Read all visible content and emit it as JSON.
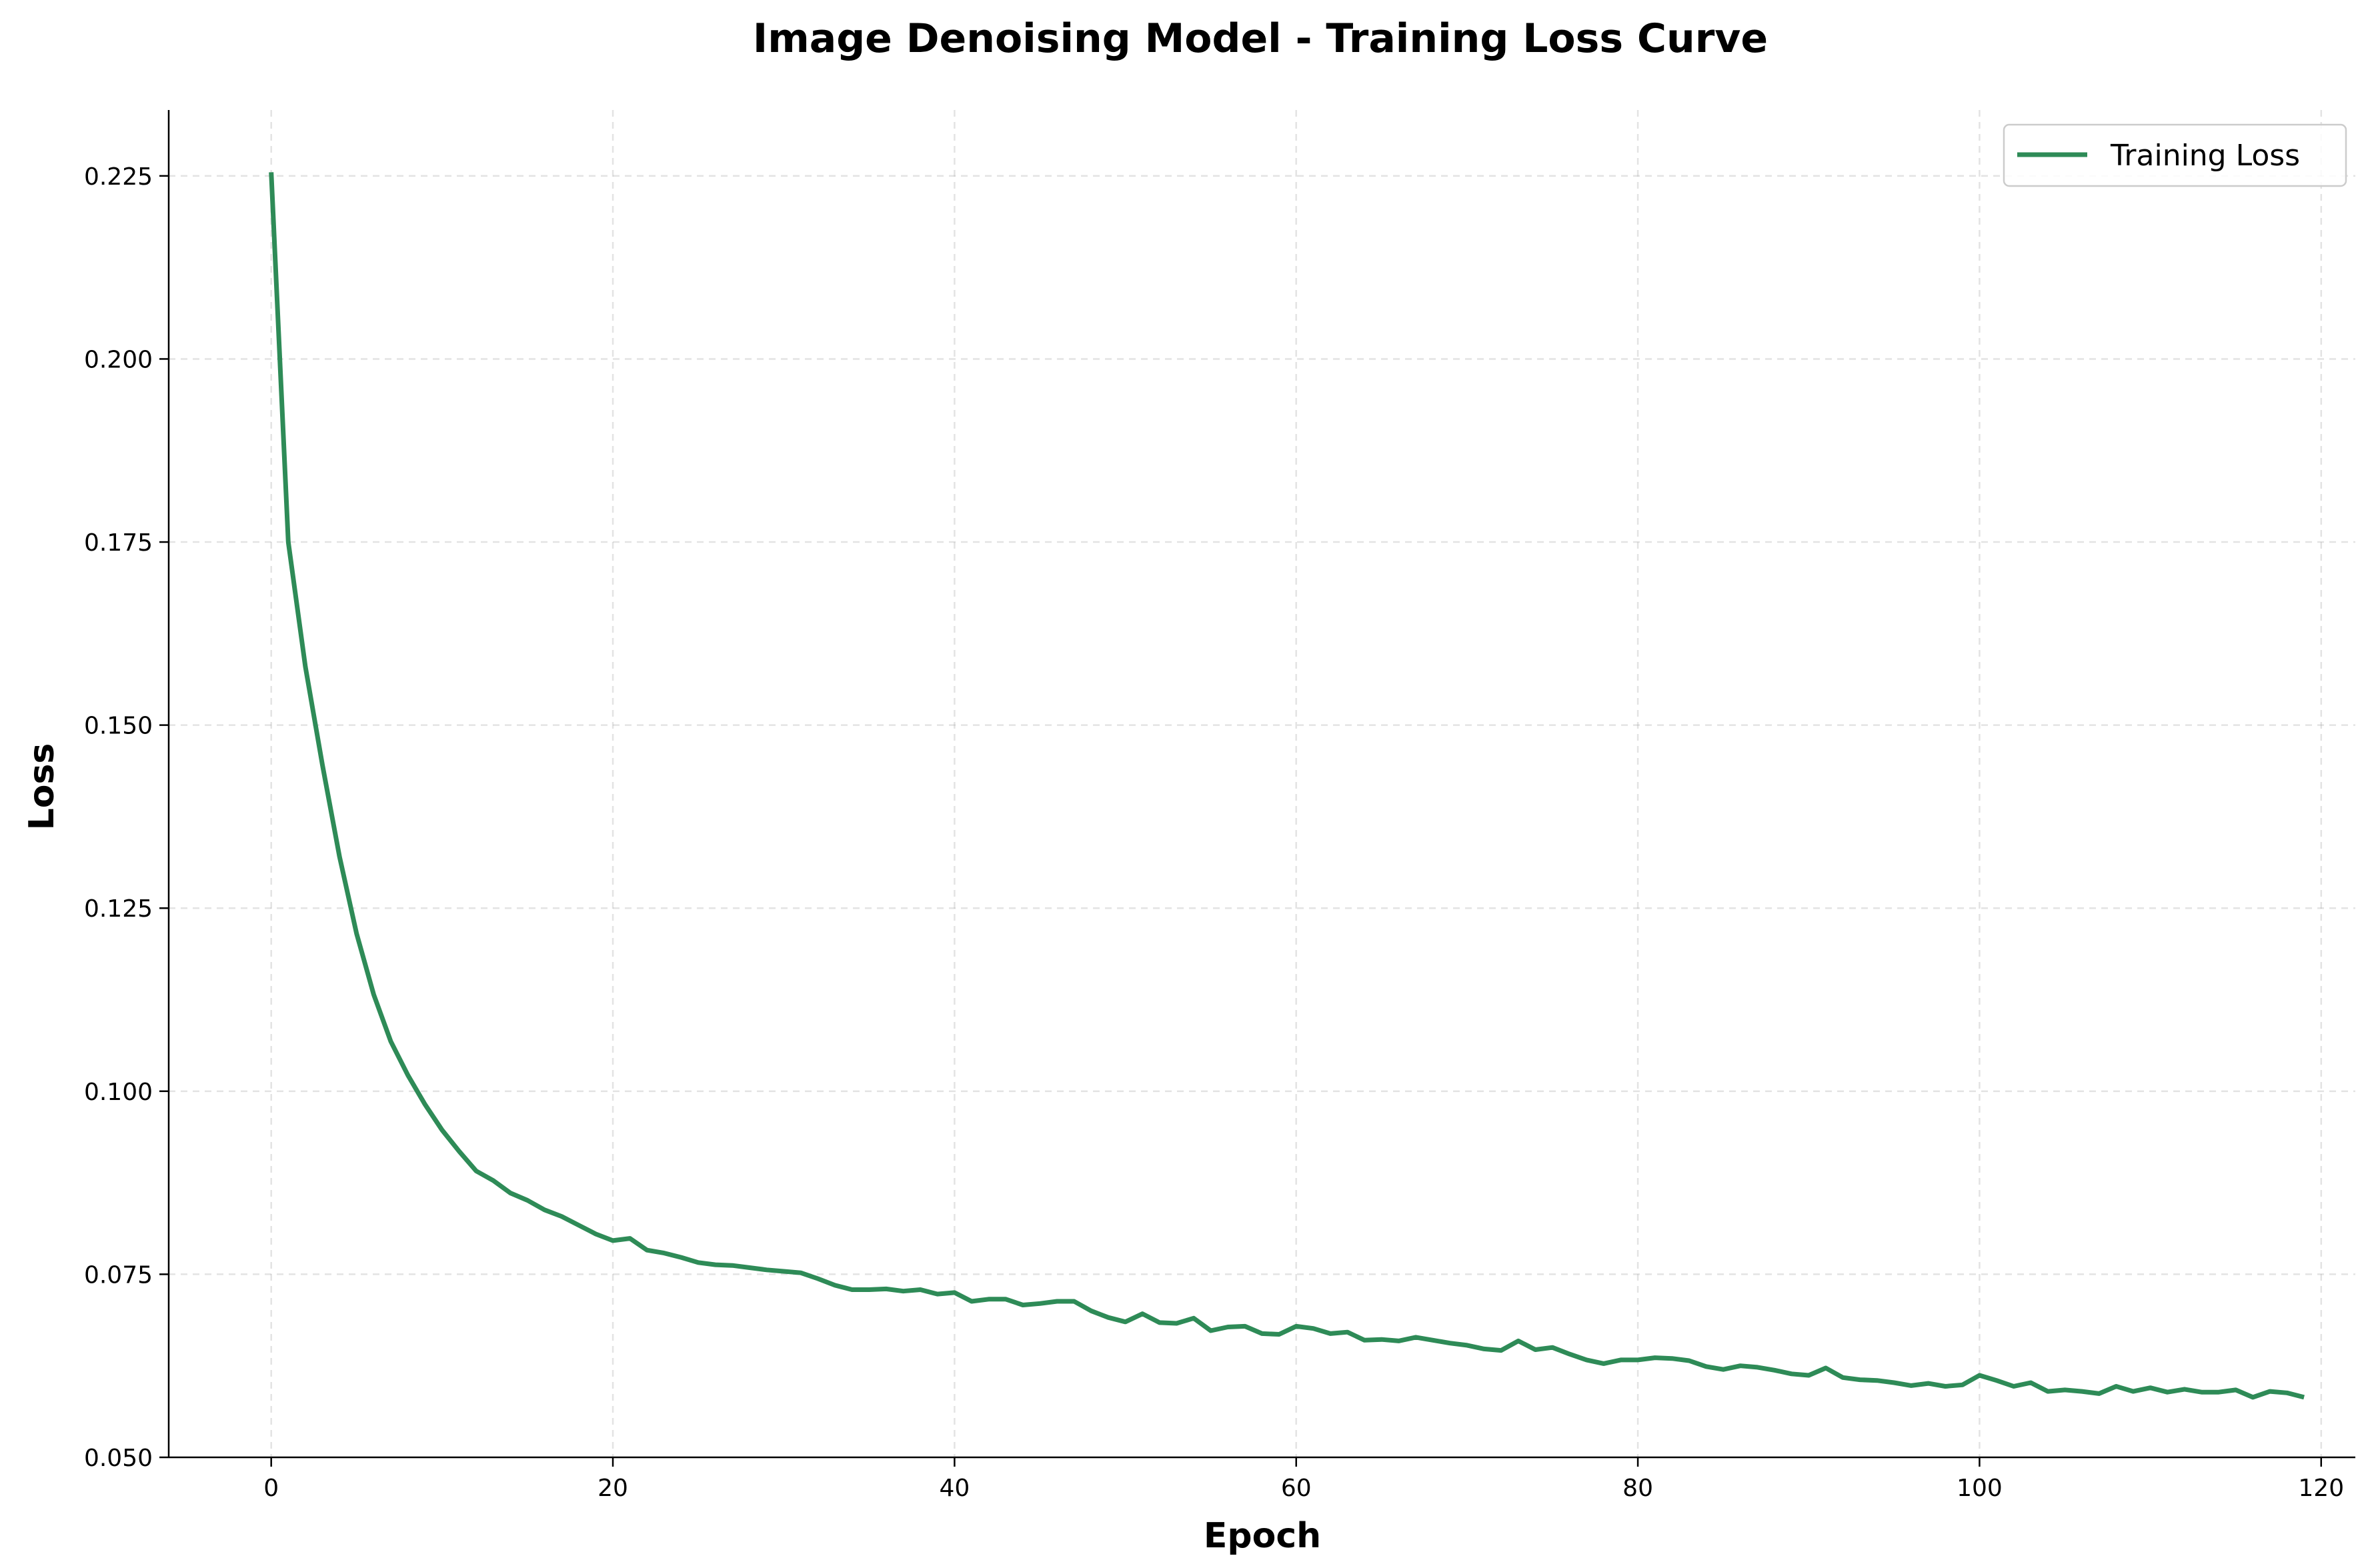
{
  "chart_data": {
    "type": "line",
    "title": "Image Denoising Model - Training Loss Curve",
    "xlabel": "Epoch",
    "ylabel": "Loss",
    "xlim": [
      -6,
      122
    ],
    "ylim": [
      0.05,
      0.234
    ],
    "xticks": [
      0,
      20,
      40,
      60,
      80,
      100,
      120
    ],
    "xtick_labels": [
      "0",
      "20",
      "40",
      "60",
      "80",
      "100",
      "120"
    ],
    "yticks": [
      0.05,
      0.075,
      0.1,
      0.125,
      0.15,
      0.175,
      0.2,
      0.225
    ],
    "ytick_labels": [
      "0.050",
      "0.075",
      "0.100",
      "0.125",
      "0.150",
      "0.175",
      "0.200",
      "0.225"
    ],
    "grid": true,
    "legend_position": "top-right",
    "colors": {
      "line": "#2e8b57"
    },
    "series": [
      {
        "name": "Training Loss",
        "x": [
          0,
          1,
          2,
          3,
          4,
          5,
          6,
          7,
          8,
          9,
          10,
          11,
          12,
          13,
          14,
          15,
          16,
          17,
          18,
          19,
          20,
          21,
          22,
          23,
          24,
          25,
          26,
          27,
          28,
          29,
          30,
          31,
          32,
          33,
          34,
          35,
          36,
          37,
          38,
          39,
          40,
          41,
          42,
          43,
          44,
          45,
          46,
          47,
          48,
          49,
          50,
          51,
          52,
          53,
          54,
          55,
          56,
          57,
          58,
          59,
          60,
          61,
          62,
          63,
          64,
          65,
          66,
          67,
          68,
          69,
          70,
          71,
          72,
          73,
          74,
          75,
          76,
          77,
          78,
          79,
          80,
          81,
          82,
          83,
          84,
          85,
          86,
          87,
          88,
          89,
          90,
          91,
          92,
          93,
          94,
          95,
          96,
          97,
          98,
          99,
          100,
          101,
          102,
          103,
          104,
          105,
          106,
          107,
          108,
          109,
          110,
          111,
          112,
          113,
          114,
          115,
          116,
          117,
          118,
          119
        ],
        "values": [
          0.2255,
          0.175,
          0.158,
          0.1445,
          0.132,
          0.1215,
          0.1132,
          0.1068,
          0.1022,
          0.0982,
          0.0947,
          0.0918,
          0.0891,
          0.0878,
          0.0861,
          0.0851,
          0.0838,
          0.0829,
          0.0817,
          0.0805,
          0.0796,
          0.0799,
          0.0783,
          0.0779,
          0.0773,
          0.0766,
          0.0763,
          0.0762,
          0.0759,
          0.0756,
          0.0754,
          0.0752,
          0.0744,
          0.0735,
          0.0729,
          0.0729,
          0.073,
          0.0727,
          0.0729,
          0.0723,
          0.0725,
          0.0713,
          0.0716,
          0.0716,
          0.0708,
          0.071,
          0.0713,
          0.0713,
          0.07,
          0.0691,
          0.0685,
          0.0696,
          0.0684,
          0.0683,
          0.069,
          0.0673,
          0.0678,
          0.0679,
          0.0669,
          0.0668,
          0.0679,
          0.0676,
          0.0669,
          0.0671,
          0.066,
          0.0661,
          0.0659,
          0.0664,
          0.066,
          0.0656,
          0.0653,
          0.0648,
          0.0646,
          0.0659,
          0.0647,
          0.065,
          0.0641,
          0.0633,
          0.0628,
          0.0633,
          0.0633,
          0.0636,
          0.0635,
          0.0632,
          0.0624,
          0.062,
          0.0625,
          0.0623,
          0.0619,
          0.0614,
          0.0612,
          0.0622,
          0.0609,
          0.0606,
          0.0605,
          0.0602,
          0.0598,
          0.0601,
          0.0597,
          0.0599,
          0.0612,
          0.0605,
          0.0597,
          0.0602,
          0.059,
          0.0592,
          0.059,
          0.0587,
          0.0597,
          0.059,
          0.0595,
          0.0589,
          0.0593,
          0.0589,
          0.0589,
          0.0592,
          0.0582,
          0.059,
          0.0588,
          0.0582
        ]
      }
    ]
  }
}
